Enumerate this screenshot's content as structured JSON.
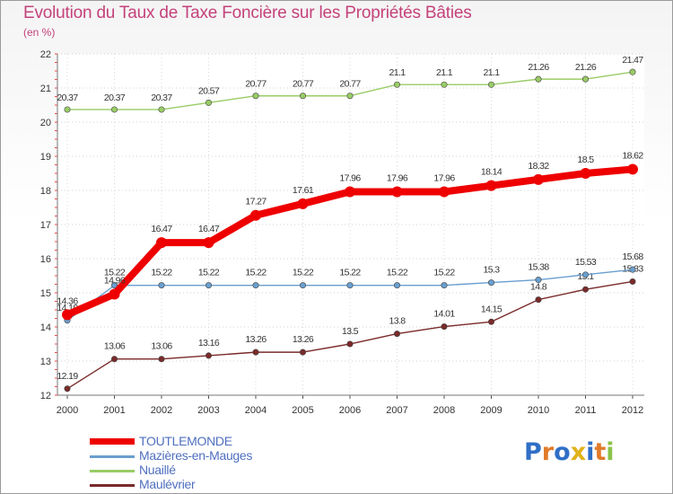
{
  "chart_data": {
    "type": "line",
    "title": "Evolution du Taux de Taxe Foncière sur les Propriétés Bâties",
    "ylabel": "(en %)",
    "xlabel": "",
    "categories": [
      "2000",
      "2001",
      "2002",
      "2003",
      "2004",
      "2005",
      "2006",
      "2007",
      "2008",
      "2009",
      "2010",
      "2011",
      "2012"
    ],
    "ylim": [
      12,
      22
    ],
    "yticks": [
      "12",
      "13",
      "14",
      "15",
      "16",
      "17",
      "18",
      "19",
      "20",
      "21",
      "22"
    ],
    "series": [
      {
        "name": "TOUTLEMONDE",
        "color": "#ee0000",
        "values": [
          14.36,
          14.96,
          16.47,
          16.47,
          17.27,
          17.61,
          17.96,
          17.96,
          17.96,
          18.14,
          18.32,
          18.5,
          18.62
        ],
        "labels": [
          "14.36",
          "14.96",
          "16.47",
          "16.47",
          "17.27",
          "17.61",
          "17.96",
          "17.96",
          "17.96",
          "18.14",
          "18.32",
          "18.5",
          "18.62"
        ]
      },
      {
        "name": "Mazières-en-Mauges",
        "color": "#6a9fcf",
        "values": [
          14.19,
          15.22,
          15.22,
          15.22,
          15.22,
          15.22,
          15.22,
          15.22,
          15.22,
          15.3,
          15.38,
          15.53,
          15.68
        ],
        "labels": [
          "14.19",
          "15.22",
          "15.22",
          "15.22",
          "15.22",
          "15.22",
          "15.22",
          "15.22",
          "15.22",
          "15.3",
          "15.38",
          "15.53",
          "15.68"
        ]
      },
      {
        "name": "Nuaillé",
        "color": "#99cc66",
        "values": [
          20.37,
          20.37,
          20.37,
          20.57,
          20.77,
          20.77,
          20.77,
          21.1,
          21.1,
          21.1,
          21.26,
          21.26,
          21.47
        ],
        "labels": [
          "20.37",
          "20.37",
          "20.37",
          "20.57",
          "20.77",
          "20.77",
          "20.77",
          "21.1",
          "21.1",
          "21.1",
          "21.26",
          "21.26",
          "21.47"
        ]
      },
      {
        "name": "Maulévrier",
        "color": "#7a2a2a",
        "values": [
          12.19,
          13.06,
          13.06,
          13.16,
          13.26,
          13.26,
          13.5,
          13.8,
          14.01,
          14.15,
          14.8,
          15.1,
          15.33
        ],
        "labels": [
          "12.19",
          "13.06",
          "13.06",
          "13.16",
          "13.26",
          "13.26",
          "13.5",
          "13.8",
          "14.01",
          "14.15",
          "14.8",
          "15.1",
          "15.33"
        ]
      }
    ],
    "legend": "bottom-left"
  },
  "logo": {
    "letters": [
      "P",
      "r",
      "o",
      "x",
      "i",
      "t",
      "i"
    ],
    "colors": [
      "#2f6fc6",
      "#e07b2a",
      "#2f6fc6",
      "#e0b21a",
      "#2f6fc6",
      "#e07b2a",
      "#8bc34a"
    ]
  }
}
